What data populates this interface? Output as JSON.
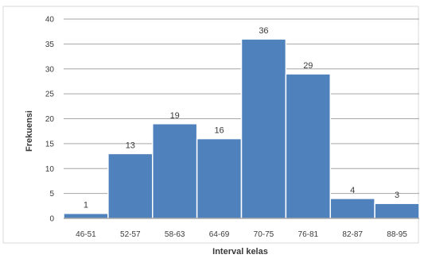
{
  "chart_data": {
    "type": "bar",
    "categories": [
      "46-51",
      "52-57",
      "58-63",
      "64-69",
      "70-75",
      "76-81",
      "82-87",
      "88-95"
    ],
    "values": [
      1,
      13,
      19,
      16,
      36,
      29,
      4,
      3
    ],
    "data_labels": [
      "1",
      "13",
      "19",
      "16",
      "36",
      "29",
      "4",
      "3"
    ],
    "title": "",
    "xlabel": "Interval kelas",
    "ylabel": "Frekuensi",
    "ylim": [
      0,
      40
    ],
    "yticks": [
      0,
      5,
      10,
      15,
      20,
      25,
      30,
      35,
      40
    ],
    "grid": true,
    "legend": "none",
    "bar_color": "#4f81bd"
  }
}
